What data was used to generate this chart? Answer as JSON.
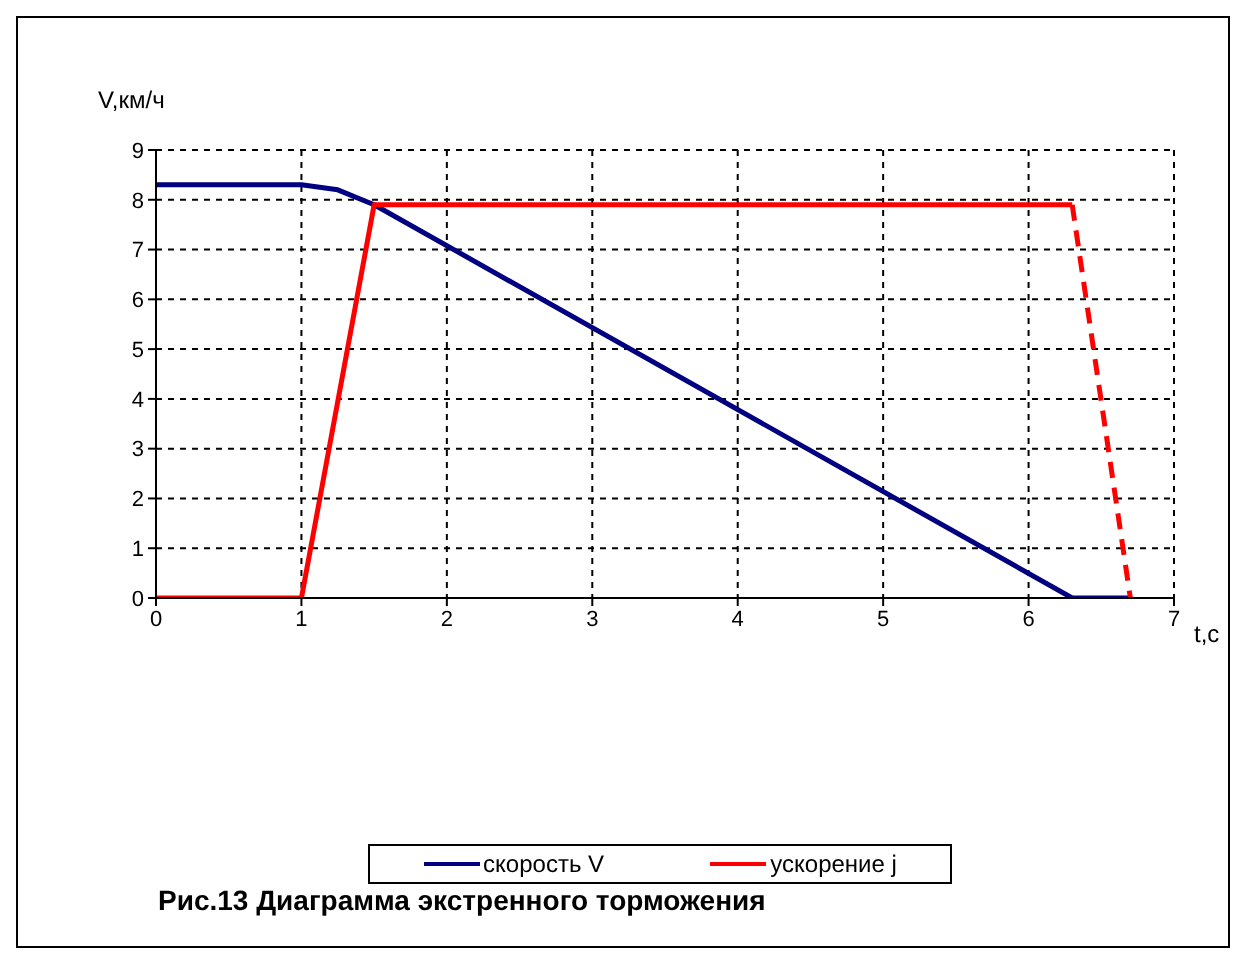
{
  "chart_data": {
    "type": "line",
    "title": "Рис.13 Диаграмма экстренного торможения",
    "xlabel": "t,c",
    "ylabel": "V,км/ч",
    "xlim": [
      0,
      7
    ],
    "xticks": [
      0,
      1,
      2,
      3,
      4,
      5,
      6,
      7
    ],
    "ylim": [
      0,
      9
    ],
    "yticks": [
      0,
      1,
      2,
      3,
      4,
      5,
      6,
      7,
      8,
      9
    ],
    "grid": true,
    "legend": "bottom",
    "marker": "none",
    "series": [
      {
        "name": "скорость V",
        "color": "#000080",
        "x": [
          0,
          1,
          1.25,
          1.5,
          6.3,
          6.7
        ],
        "values": [
          8.3,
          8.3,
          8.2,
          7.9,
          0,
          0
        ],
        "line_style": "solid"
      },
      {
        "name": "ускорение j",
        "color": "#ff0000",
        "x": [
          0,
          1,
          1.5,
          6.3
        ],
        "values": [
          0,
          0,
          7.9,
          7.9
        ],
        "line_style": "solid"
      },
      {
        "color": "#ff0000",
        "x": [
          6.3,
          6.7
        ],
        "values": [
          7.9,
          0
        ],
        "line_style": "dashed"
      }
    ]
  }
}
